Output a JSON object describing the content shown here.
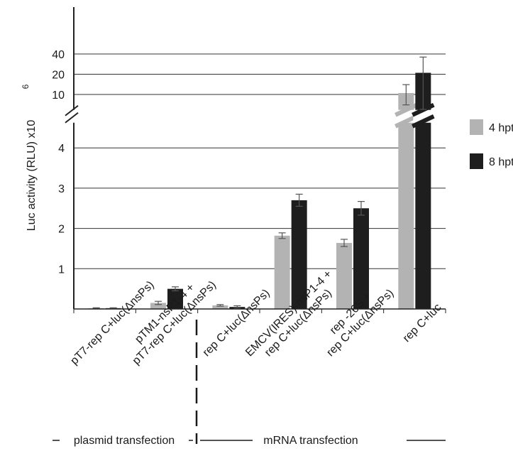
{
  "chart_data": {
    "type": "bar",
    "ylabel": "Luc activity (RLU) x10",
    "ylabel_exponent": "6",
    "y_axis": "broken",
    "grid": "horizontal",
    "legend_placement": "right",
    "lower_ticks": [
      "1",
      "2",
      "3",
      "4"
    ],
    "upper_ticks": [
      "10",
      "20",
      "40"
    ],
    "categories": [
      "pT7-rep C+luc(ΔnsPs)",
      "pTM1-nsP1-4 + pT7-rep C+luc(ΔnsPs)",
      "rep C+luc(ΔnsPs)",
      "EMCV(IRES)-nsP1-4 + rep C+luc(ΔnsPs)",
      "rep -26S + rep C+luc(ΔnsPs)",
      "rep C+luc"
    ],
    "category_lines": [
      [
        "pT7-rep C+luc(ΔnsPs)"
      ],
      [
        "pTM1-nsP1-4 +",
        "pT7-rep C+luc(ΔnsPs)"
      ],
      [
        "rep C+luc(ΔnsPs)"
      ],
      [
        "EMCV(IRES)-nsP1-4 +",
        "rep C+luc(ΔnsPs)"
      ],
      [
        "rep -26S +",
        "rep C+luc(ΔnsPs)"
      ],
      [
        "rep C+luc"
      ]
    ],
    "series": [
      {
        "name": "4 hpt",
        "color": "#b3b3b3",
        "values": [
          0.02,
          0.15,
          0.09,
          1.82,
          1.64,
          10.5
        ],
        "errors": [
          0.01,
          0.04,
          0.02,
          0.07,
          0.09,
          3.5
        ]
      },
      {
        "name": "8 hpt",
        "color": "#1e1e1e",
        "values": [
          0.02,
          0.5,
          0.05,
          2.7,
          2.5,
          21
        ],
        "errors": [
          0.01,
          0.05,
          0.03,
          0.15,
          0.17,
          15
        ]
      }
    ],
    "groups": [
      {
        "label": "plasmid transfection",
        "from": 0,
        "to": 1
      },
      {
        "label": "mRNA transfection",
        "from": 2,
        "to": 5
      }
    ]
  }
}
